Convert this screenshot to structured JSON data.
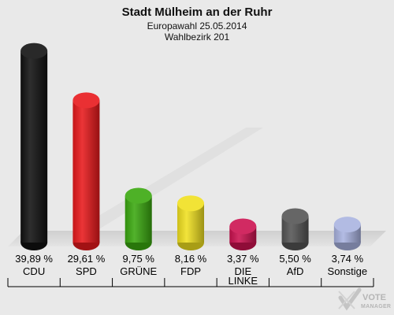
{
  "title": "Stadt Mülheim an der Ruhr",
  "subtitle1": "Europawahl 25.05.2014",
  "subtitle2": "Wahlbezirk 201",
  "logo": {
    "line1": "VOTE",
    "line2": "MANAGER"
  },
  "chart_data": {
    "type": "bar",
    "title": "Stadt Mülheim an der Ruhr",
    "categories": [
      "CDU",
      "SPD",
      "GRÜNE",
      "FDP",
      "DIE LINKE",
      "AfD",
      "Sonstige"
    ],
    "category_lines": [
      [
        "CDU"
      ],
      [
        "SPD"
      ],
      [
        "GRÜNE"
      ],
      [
        "FDP"
      ],
      [
        "DIE",
        "LINKE"
      ],
      [
        "AfD"
      ],
      [
        "Sonstige"
      ]
    ],
    "values": [
      39.89,
      29.61,
      9.75,
      8.16,
      3.37,
      5.5,
      3.74
    ],
    "value_labels": [
      "39,89 %",
      "29,61 %",
      "9,75 %",
      "8,16 %",
      "3,37 %",
      "5,50 %",
      "3,74 %"
    ],
    "colors": [
      "#111111",
      "#e8191c",
      "#3aa80f",
      "#f0e020",
      "#cc1250",
      "#555555",
      "#a9b3e0"
    ],
    "ylim": [
      0,
      40
    ],
    "grid": false,
    "legend": "none"
  }
}
